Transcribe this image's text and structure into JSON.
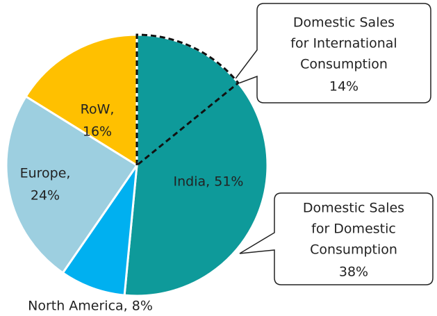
{
  "chart_data": {
    "type": "pie",
    "values": [
      51,
      8,
      24,
      16
    ],
    "labels": [
      [
        "India, 51%"
      ],
      [
        "North America, 8%"
      ],
      [
        "Europe,",
        "24%"
      ],
      [
        "RoW,",
        "16%"
      ]
    ],
    "colors": [
      "#0E9A9A",
      "#00B0F0",
      "#9DCFE0",
      "#FFC000"
    ],
    "annotations": [
      {
        "lines": [
          "Domestic Sales",
          "for International",
          "Consumption"
        ],
        "value": 14,
        "value_label": "14%"
      },
      {
        "lines": [
          "Domestic Sales",
          "for Domestic",
          "Consumption"
        ],
        "value": 38,
        "value_label": "38%"
      }
    ]
  }
}
